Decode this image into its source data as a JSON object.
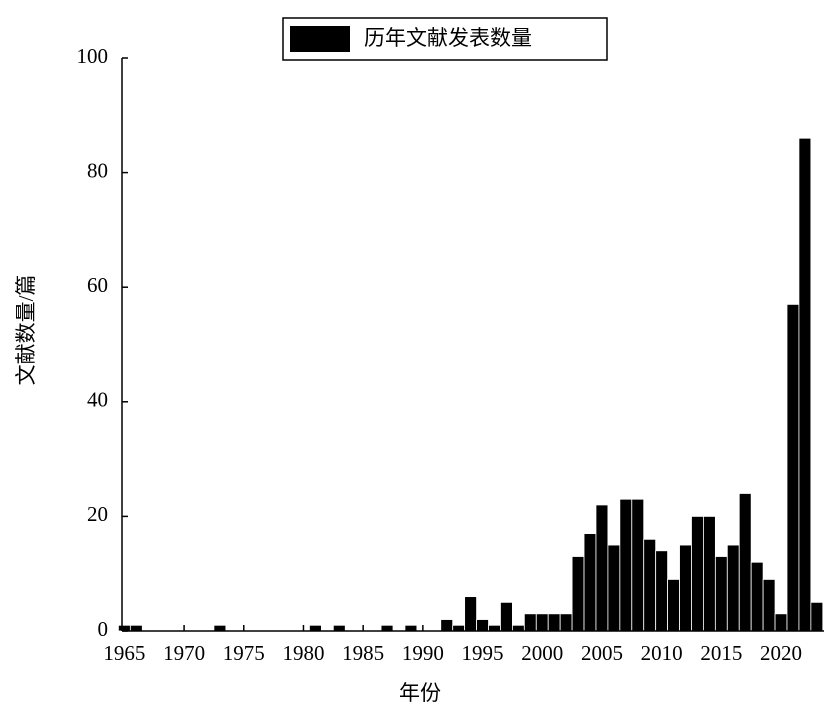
{
  "chart_data": {
    "type": "bar",
    "x": [
      1965,
      1966,
      1973,
      1981,
      1983,
      1987,
      1989,
      1992,
      1993,
      1994,
      1995,
      1996,
      1997,
      1998,
      1999,
      2000,
      2001,
      2002,
      2003,
      2004,
      2005,
      2006,
      2007,
      2008,
      2009,
      2010,
      2011,
      2012,
      2013,
      2014,
      2015,
      2016,
      2017,
      2018,
      2019,
      2020,
      2021,
      2022,
      2023
    ],
    "series": [
      {
        "name": "历年文献发表数量",
        "color": "#000000",
        "values": [
          1,
          1,
          1,
          1,
          1,
          1,
          1,
          2,
          1,
          6,
          2,
          1,
          5,
          1,
          3,
          3,
          3,
          3,
          13,
          17,
          22,
          15,
          23,
          23,
          16,
          14,
          9,
          15,
          20,
          20,
          13,
          15,
          24,
          12,
          9,
          3,
          57,
          86,
          5
        ]
      }
    ],
    "xlabel": "年份",
    "ylabel": "文献数量/篇",
    "xlim": [
      1964.8,
      2023.6
    ],
    "xticks": [
      1965,
      1970,
      1975,
      1980,
      1985,
      1990,
      1995,
      2000,
      2005,
      2010,
      2015,
      2020
    ],
    "ylim": [
      0,
      100
    ],
    "yticks": [
      0,
      20,
      40,
      60,
      80,
      100
    ],
    "grid": false,
    "legend": "top"
  }
}
